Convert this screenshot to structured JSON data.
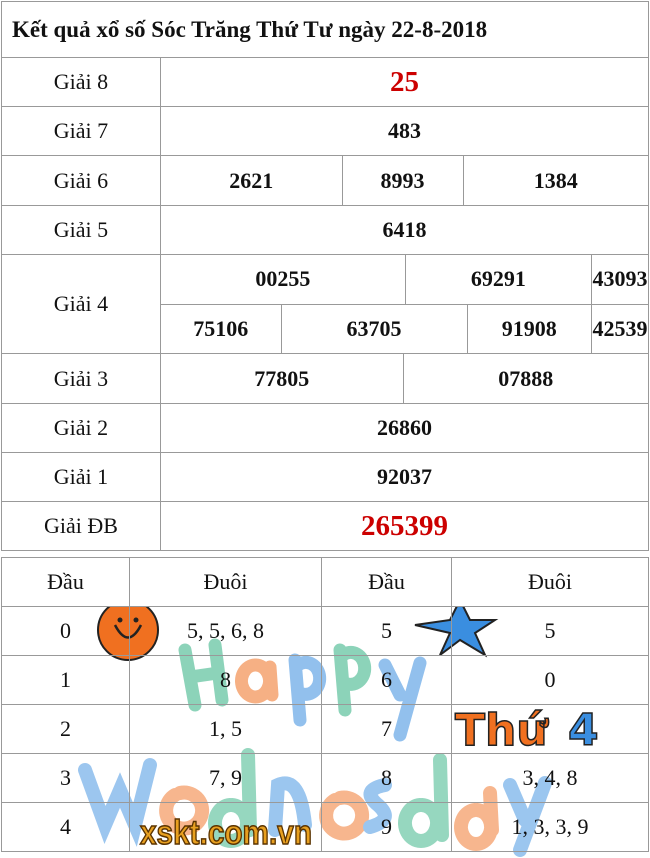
{
  "title": "Kết quả xổ số Sóc Trăng Thứ Tư ngày 22-8-2018",
  "prizes": {
    "g8": {
      "label": "Giải 8",
      "values": [
        "25"
      ]
    },
    "g7": {
      "label": "Giải 7",
      "values": [
        "483"
      ]
    },
    "g6": {
      "label": "Giải 6",
      "values": [
        "2621",
        "8993",
        "1384"
      ]
    },
    "g5": {
      "label": "Giải 5",
      "values": [
        "6418"
      ]
    },
    "g4": {
      "label": "Giải 4",
      "values": [
        "00255",
        "69291",
        "43093",
        "75106",
        "63705",
        "91908",
        "42539"
      ]
    },
    "g3": {
      "label": "Giải 3",
      "values": [
        "77805",
        "07888"
      ]
    },
    "g2": {
      "label": "Giải 2",
      "values": [
        "26860"
      ]
    },
    "g1": {
      "label": "Giải 1",
      "values": [
        "92037"
      ]
    },
    "db": {
      "label": "Giải ĐB",
      "values": [
        "265399"
      ]
    }
  },
  "loto": {
    "headers": [
      "Đầu",
      "Đuôi",
      "Đầu",
      "Đuôi"
    ],
    "rows": [
      [
        "0",
        "5, 5, 6, 8",
        "5",
        "5"
      ],
      [
        "1",
        "8",
        "6",
        "0"
      ],
      [
        "2",
        "1, 5",
        "7",
        ""
      ],
      [
        "3",
        "7, 9",
        "8",
        "3, 4, 8"
      ],
      [
        "4",
        "",
        "9",
        "1, 3, 3, 9"
      ]
    ]
  },
  "banner": {
    "text1": "Happy",
    "text2": "Wednesday",
    "day": "Thứ",
    "daynum": "4",
    "watermark": "xskt.com.vn"
  },
  "colors": {
    "red": "#cc0000",
    "orange": "#f07020",
    "blue": "#3a8ee0",
    "green": "#30b080",
    "gold": "#e8a020"
  }
}
